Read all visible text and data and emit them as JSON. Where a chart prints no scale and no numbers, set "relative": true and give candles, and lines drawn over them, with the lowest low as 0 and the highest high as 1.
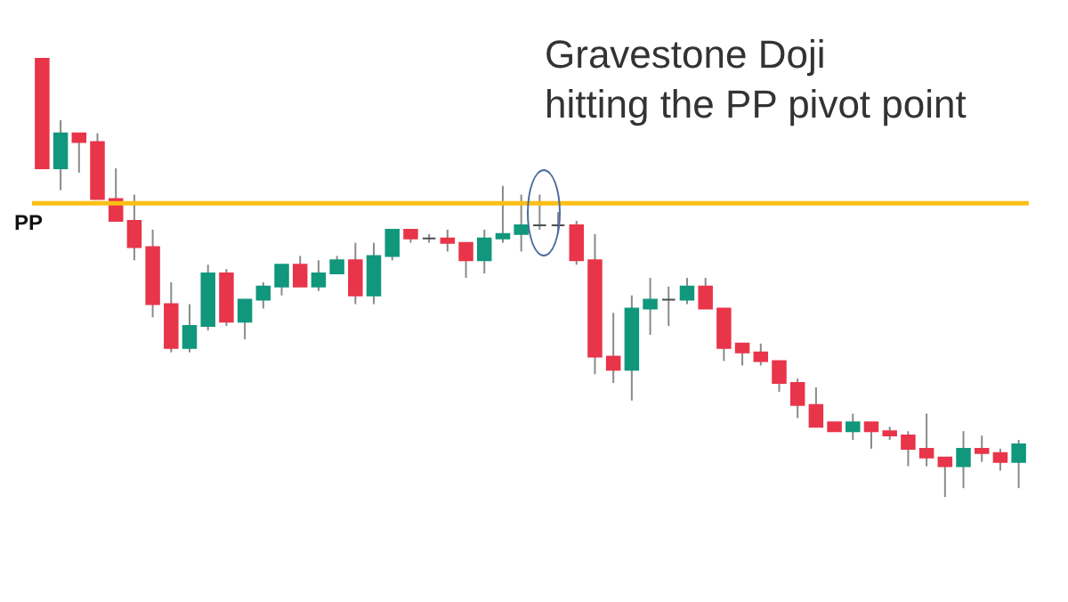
{
  "chart_data": {
    "type": "candlestick",
    "relative": true,
    "categories": [
      null,
      null,
      null,
      null,
      null,
      null,
      null,
      null,
      null,
      null,
      null,
      null,
      null,
      null,
      null,
      null,
      null,
      null,
      null,
      null,
      null,
      null,
      null,
      null,
      null,
      null,
      null,
      null,
      null,
      null,
      null,
      null,
      null,
      null,
      null,
      null,
      null,
      null,
      null,
      null,
      null,
      null,
      null,
      null,
      null,
      null,
      null,
      null,
      null,
      null,
      null,
      null,
      null,
      null
    ],
    "ohlc": [
      [
        1.0,
        1.0,
        0.75,
        0.75
      ],
      [
        0.75,
        0.86,
        0.7,
        0.83
      ],
      [
        0.83,
        0.83,
        0.74,
        0.81
      ],
      [
        0.81,
        0.83,
        0.68,
        0.68
      ],
      [
        0.68,
        0.75,
        0.63,
        0.63
      ],
      [
        0.63,
        0.69,
        0.54,
        0.57
      ],
      [
        0.57,
        0.61,
        0.41,
        0.44
      ],
      [
        0.44,
        0.49,
        0.33,
        0.34
      ],
      [
        0.34,
        0.44,
        0.33,
        0.39
      ],
      [
        0.39,
        0.53,
        0.38,
        0.51
      ],
      [
        0.51,
        0.52,
        0.39,
        0.4
      ],
      [
        0.4,
        0.45,
        0.36,
        0.45
      ],
      [
        0.45,
        0.49,
        0.43,
        0.48
      ],
      [
        0.48,
        0.53,
        0.46,
        0.53
      ],
      [
        0.53,
        0.55,
        0.48,
        0.48
      ],
      [
        0.48,
        0.54,
        0.47,
        0.51
      ],
      [
        0.51,
        0.55,
        0.51,
        0.54
      ],
      [
        0.54,
        0.58,
        0.44,
        0.46
      ],
      [
        0.46,
        0.58,
        0.44,
        0.55
      ],
      [
        0.55,
        0.61,
        0.54,
        0.61
      ],
      [
        0.61,
        0.61,
        0.58,
        0.59
      ],
      [
        0.59,
        0.6,
        0.58,
        0.59
      ],
      [
        0.59,
        0.61,
        0.56,
        0.58
      ],
      [
        0.58,
        0.58,
        0.5,
        0.54
      ],
      [
        0.54,
        0.61,
        0.51,
        0.59
      ],
      [
        0.59,
        0.71,
        0.58,
        0.6
      ],
      [
        0.6,
        0.69,
        0.56,
        0.62
      ],
      [
        0.62,
        0.69,
        0.61,
        0.62
      ],
      [
        0.62,
        0.65,
        0.6,
        0.62
      ],
      [
        0.62,
        0.63,
        0.53,
        0.54
      ],
      [
        0.54,
        0.6,
        0.28,
        0.32
      ],
      [
        0.32,
        0.42,
        0.26,
        0.29
      ],
      [
        0.29,
        0.46,
        0.22,
        0.43
      ],
      [
        0.43,
        0.5,
        0.37,
        0.45
      ],
      [
        0.45,
        0.48,
        0.39,
        0.45
      ],
      [
        0.45,
        0.5,
        0.44,
        0.48
      ],
      [
        0.48,
        0.5,
        0.43,
        0.43
      ],
      [
        0.43,
        0.43,
        0.31,
        0.34
      ],
      [
        0.35,
        0.35,
        0.3,
        0.33
      ],
      [
        0.33,
        0.35,
        0.3,
        0.31
      ],
      [
        0.31,
        0.31,
        0.24,
        0.26
      ],
      [
        0.26,
        0.27,
        0.18,
        0.21
      ],
      [
        0.21,
        0.25,
        0.16,
        0.16
      ],
      [
        0.17,
        0.17,
        0.15,
        0.15
      ],
      [
        0.15,
        0.19,
        0.13,
        0.17
      ],
      [
        0.17,
        0.17,
        0.11,
        0.15
      ],
      [
        0.15,
        0.16,
        0.13,
        0.14
      ],
      [
        0.14,
        0.15,
        0.07,
        0.11
      ],
      [
        0.11,
        0.19,
        0.07,
        0.09
      ],
      [
        0.09,
        0.09,
        0.0,
        0.07
      ],
      [
        0.07,
        0.15,
        0.02,
        0.11
      ],
      [
        0.11,
        0.14,
        0.08,
        0.1
      ],
      [
        0.1,
        0.11,
        0.06,
        0.08
      ],
      [
        0.08,
        0.13,
        0.02,
        0.12
      ]
    ],
    "colors": [
      "#e8354a",
      "#11977c",
      "#e8354a",
      "#e8354a",
      "#e8354a",
      "#e8354a",
      "#e8354a",
      "#e8354a",
      "#11977c",
      "#11977c",
      "#e8354a",
      "#11977c",
      "#11977c",
      "#11977c",
      "#e8354a",
      "#11977c",
      "#11977c",
      "#e8354a",
      "#11977c",
      "#11977c",
      "#e8354a",
      "#4d4d4d",
      "#e8354a",
      "#e8354a",
      "#11977c",
      "#11977c",
      "#11977c",
      "#4d4d4d",
      "#4d4d4d",
      "#e8354a",
      "#e8354a",
      "#e8354a",
      "#11977c",
      "#11977c",
      "#4d4d4d",
      "#11977c",
      "#e8354a",
      "#e8354a",
      "#e8354a",
      "#e8354a",
      "#e8354a",
      "#e8354a",
      "#e8354a",
      "#e8354a",
      "#11977c",
      "#e8354a",
      "#e8354a",
      "#e8354a",
      "#e8354a",
      "#e8354a",
      "#11977c",
      "#e8354a",
      "#e8354a",
      "#11977c"
    ],
    "ref_lines": [
      {
        "axis": "y",
        "value": 0.67,
        "label": "PP",
        "color": "#fbbf16"
      }
    ],
    "annotations": [
      "Gravestone Doji\nhitting the PP pivot point"
    ]
  }
}
